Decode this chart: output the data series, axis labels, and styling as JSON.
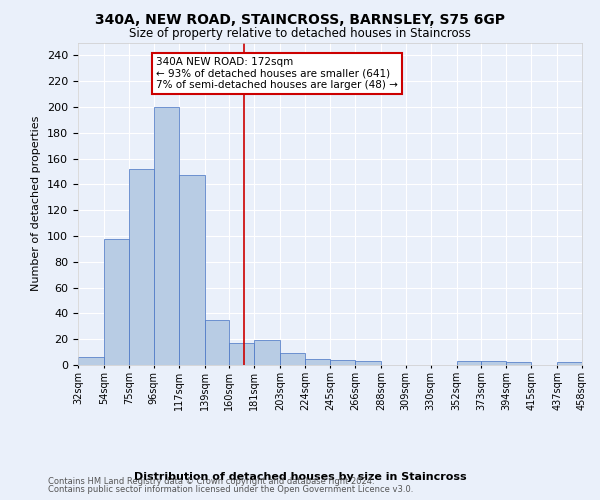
{
  "title": "340A, NEW ROAD, STAINCROSS, BARNSLEY, S75 6GP",
  "subtitle": "Size of property relative to detached houses in Staincross",
  "xlabel": "Distribution of detached houses by size in Staincross",
  "ylabel": "Number of detached properties",
  "bins": [
    "32sqm",
    "54sqm",
    "75sqm",
    "96sqm",
    "117sqm",
    "139sqm",
    "160sqm",
    "181sqm",
    "203sqm",
    "224sqm",
    "245sqm",
    "266sqm",
    "288sqm",
    "309sqm",
    "330sqm",
    "352sqm",
    "373sqm",
    "394sqm",
    "415sqm",
    "437sqm",
    "458sqm"
  ],
  "counts": [
    6,
    98,
    152,
    200,
    147,
    35,
    17,
    19,
    9,
    5,
    4,
    3,
    0,
    0,
    0,
    3,
    3,
    2,
    0,
    2,
    0
  ],
  "bar_color": "#b8cce4",
  "bar_edge_color": "#4472c4",
  "bg_color": "#eaf0fa",
  "grid_color": "#ffffff",
  "property_line_x": 172,
  "property_line_color": "#cc0000",
  "annotation_text": "340A NEW ROAD: 172sqm\n← 93% of detached houses are smaller (641)\n7% of semi-detached houses are larger (48) →",
  "annotation_box_color": "#ffffff",
  "annotation_box_edge": "#cc0000",
  "footnote1": "Contains HM Land Registry data © Crown copyright and database right 2024.",
  "footnote2": "Contains public sector information licensed under the Open Government Licence v3.0.",
  "ylim": [
    0,
    250
  ],
  "yticks": [
    0,
    20,
    40,
    60,
    80,
    100,
    120,
    140,
    160,
    180,
    200,
    220,
    240
  ],
  "bin_edges_sqm": [
    32,
    54,
    75,
    96,
    117,
    139,
    160,
    181,
    203,
    224,
    245,
    266,
    288,
    309,
    330,
    352,
    373,
    394,
    415,
    437,
    458
  ]
}
